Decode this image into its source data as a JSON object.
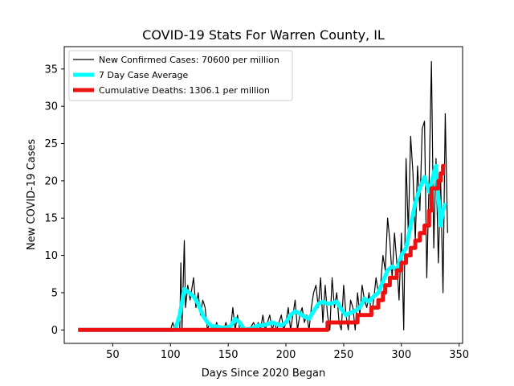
{
  "chart_data": {
    "type": "line",
    "title": "COVID-19 Stats For Warren County, IL",
    "xlabel": "Days Since 2020 Began",
    "ylabel": "New COVID-19 Cases",
    "xlim": [
      8,
      353
    ],
    "ylim": [
      -1.8,
      38
    ],
    "xticks": [
      50,
      100,
      150,
      200,
      250,
      300,
      350
    ],
    "yticks": [
      0,
      5,
      10,
      15,
      20,
      25,
      30,
      35
    ],
    "legend_position": "top-left",
    "series": [
      {
        "name": "New Confirmed Cases: 70600 per million",
        "color": "#000000",
        "points": [
          [
            20,
            0
          ],
          [
            100,
            0
          ],
          [
            102,
            1
          ],
          [
            104,
            0
          ],
          [
            106,
            0
          ],
          [
            108,
            0
          ],
          [
            109,
            9
          ],
          [
            110,
            0
          ],
          [
            112,
            12
          ],
          [
            113,
            3
          ],
          [
            115,
            6
          ],
          [
            117,
            4
          ],
          [
            118,
            5
          ],
          [
            120,
            7
          ],
          [
            122,
            3
          ],
          [
            124,
            5
          ],
          [
            126,
            2
          ],
          [
            128,
            4
          ],
          [
            130,
            3
          ],
          [
            132,
            0
          ],
          [
            134,
            1
          ],
          [
            136,
            0
          ],
          [
            138,
            0
          ],
          [
            140,
            1
          ],
          [
            142,
            0
          ],
          [
            146,
            0
          ],
          [
            148,
            1
          ],
          [
            150,
            0
          ],
          [
            152,
            0
          ],
          [
            154,
            3
          ],
          [
            156,
            0
          ],
          [
            158,
            2
          ],
          [
            160,
            0
          ],
          [
            164,
            0
          ],
          [
            166,
            0
          ],
          [
            168,
            0
          ],
          [
            172,
            1
          ],
          [
            174,
            0
          ],
          [
            176,
            1
          ],
          [
            178,
            0
          ],
          [
            180,
            2
          ],
          [
            182,
            0
          ],
          [
            184,
            1
          ],
          [
            186,
            2
          ],
          [
            188,
            0
          ],
          [
            190,
            1
          ],
          [
            192,
            0
          ],
          [
            194,
            1
          ],
          [
            196,
            2
          ],
          [
            198,
            0
          ],
          [
            200,
            1
          ],
          [
            202,
            3
          ],
          [
            204,
            0
          ],
          [
            206,
            2
          ],
          [
            208,
            4
          ],
          [
            210,
            0
          ],
          [
            212,
            2
          ],
          [
            214,
            3
          ],
          [
            216,
            1
          ],
          [
            218,
            2
          ],
          [
            220,
            0
          ],
          [
            222,
            3
          ],
          [
            224,
            5
          ],
          [
            226,
            6
          ],
          [
            228,
            3
          ],
          [
            230,
            7
          ],
          [
            232,
            1
          ],
          [
            234,
            6
          ],
          [
            236,
            2
          ],
          [
            238,
            0
          ],
          [
            240,
            7
          ],
          [
            242,
            3
          ],
          [
            244,
            5
          ],
          [
            246,
            1
          ],
          [
            248,
            0
          ],
          [
            250,
            6
          ],
          [
            252,
            2
          ],
          [
            254,
            0
          ],
          [
            256,
            4
          ],
          [
            258,
            3
          ],
          [
            260,
            0
          ],
          [
            262,
            5
          ],
          [
            264,
            2
          ],
          [
            266,
            6
          ],
          [
            268,
            4
          ],
          [
            270,
            3
          ],
          [
            272,
            5
          ],
          [
            274,
            2
          ],
          [
            276,
            4
          ],
          [
            278,
            7
          ],
          [
            280,
            5
          ],
          [
            282,
            6
          ],
          [
            284,
            10
          ],
          [
            286,
            8
          ],
          [
            288,
            15
          ],
          [
            290,
            12
          ],
          [
            292,
            7
          ],
          [
            294,
            13
          ],
          [
            296,
            9
          ],
          [
            298,
            4
          ],
          [
            300,
            13
          ],
          [
            302,
            0
          ],
          [
            304,
            23
          ],
          [
            306,
            13
          ],
          [
            308,
            26
          ],
          [
            310,
            21
          ],
          [
            312,
            12
          ],
          [
            314,
            22
          ],
          [
            316,
            16
          ],
          [
            318,
            27
          ],
          [
            320,
            28
          ],
          [
            322,
            7
          ],
          [
            324,
            20
          ],
          [
            326,
            36
          ],
          [
            328,
            11
          ],
          [
            330,
            23
          ],
          [
            332,
            9
          ],
          [
            334,
            20
          ],
          [
            336,
            5
          ],
          [
            338,
            29
          ],
          [
            340,
            13
          ]
        ]
      },
      {
        "name": "7 Day Case Average",
        "color": "#00ffff",
        "points": [
          [
            20,
            0
          ],
          [
            104,
            0
          ],
          [
            108,
            2
          ],
          [
            112,
            5.5
          ],
          [
            116,
            5
          ],
          [
            120,
            4.5
          ],
          [
            124,
            3.5
          ],
          [
            128,
            2
          ],
          [
            132,
            1
          ],
          [
            136,
            0.5
          ],
          [
            140,
            0.5
          ],
          [
            144,
            0.3
          ],
          [
            148,
            0.3
          ],
          [
            152,
            0.5
          ],
          [
            156,
            1.5
          ],
          [
            160,
            1
          ],
          [
            164,
            0
          ],
          [
            172,
            0.3
          ],
          [
            176,
            0.6
          ],
          [
            180,
            0.6
          ],
          [
            184,
            0.8
          ],
          [
            188,
            1
          ],
          [
            192,
            0.8
          ],
          [
            196,
            0.6
          ],
          [
            200,
            1
          ],
          [
            204,
            2
          ],
          [
            208,
            2.5
          ],
          [
            212,
            2.2
          ],
          [
            216,
            1.8
          ],
          [
            220,
            1.5
          ],
          [
            224,
            2.5
          ],
          [
            228,
            3.5
          ],
          [
            232,
            3.8
          ],
          [
            236,
            3.5
          ],
          [
            240,
            3.6
          ],
          [
            244,
            3.8
          ],
          [
            248,
            2.8
          ],
          [
            252,
            2
          ],
          [
            256,
            2.3
          ],
          [
            260,
            2.6
          ],
          [
            264,
            3
          ],
          [
            268,
            4.2
          ],
          [
            272,
            3.8
          ],
          [
            276,
            4.5
          ],
          [
            280,
            5
          ],
          [
            284,
            6.5
          ],
          [
            288,
            8
          ],
          [
            292,
            8.5
          ],
          [
            296,
            8
          ],
          [
            300,
            10
          ],
          [
            304,
            11
          ],
          [
            308,
            14
          ],
          [
            312,
            17
          ],
          [
            316,
            19
          ],
          [
            320,
            20.5
          ],
          [
            324,
            18.5
          ],
          [
            328,
            21
          ],
          [
            330,
            22
          ],
          [
            332,
            18
          ],
          [
            334,
            14
          ],
          [
            336,
            16
          ],
          [
            338,
            17
          ]
        ]
      },
      {
        "name": "Cumulative Deaths: 1306.1 per million",
        "color": "#ee1111",
        "points": [
          [
            20,
            0
          ],
          [
            236,
            0
          ],
          [
            236,
            1
          ],
          [
            262,
            1
          ],
          [
            262,
            2
          ],
          [
            274,
            2
          ],
          [
            274,
            3
          ],
          [
            280,
            3
          ],
          [
            280,
            4
          ],
          [
            284,
            4
          ],
          [
            284,
            5
          ],
          [
            286,
            5
          ],
          [
            286,
            6
          ],
          [
            290,
            6
          ],
          [
            290,
            7
          ],
          [
            296,
            7
          ],
          [
            296,
            8
          ],
          [
            300,
            8
          ],
          [
            300,
            9
          ],
          [
            304,
            9
          ],
          [
            304,
            10
          ],
          [
            308,
            10
          ],
          [
            308,
            11
          ],
          [
            312,
            11
          ],
          [
            312,
            12
          ],
          [
            316,
            12
          ],
          [
            316,
            13
          ],
          [
            320,
            13
          ],
          [
            320,
            14
          ],
          [
            324,
            14
          ],
          [
            324,
            16
          ],
          [
            326,
            16
          ],
          [
            326,
            19
          ],
          [
            328,
            19
          ],
          [
            332,
            19
          ],
          [
            332,
            20
          ],
          [
            334,
            20
          ],
          [
            334,
            21
          ],
          [
            336,
            21
          ],
          [
            336,
            22
          ],
          [
            338,
            22
          ]
        ]
      }
    ]
  }
}
